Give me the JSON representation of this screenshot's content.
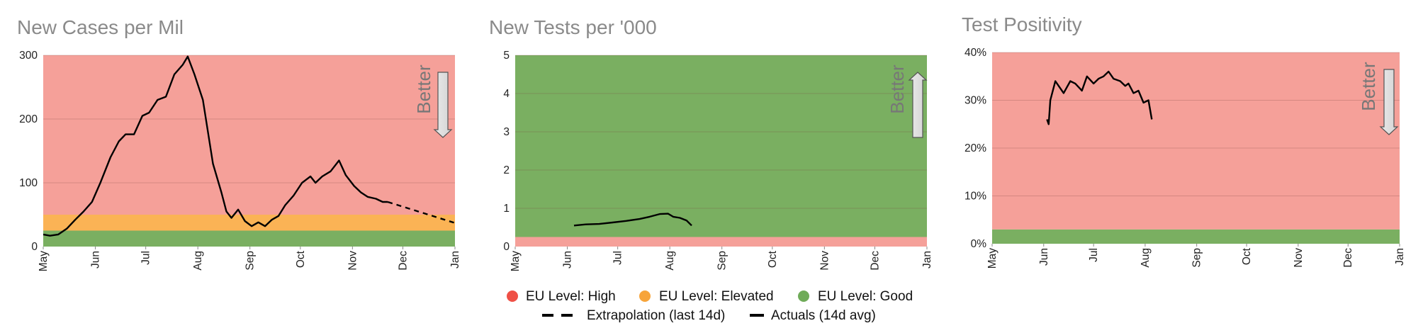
{
  "legend": {
    "high": "EU Level: High",
    "elevated": "EU Level: Elevated",
    "good": "EU Level: Good",
    "extrapolation": "Extrapolation (last 14d)",
    "actuals": "Actuals (14d avg)"
  },
  "colors": {
    "high": "#f5a099",
    "elevated": "#fbb355",
    "good": "#7aaf61",
    "legend_high": "#ef5046",
    "legend_elevated": "#f7a43a",
    "legend_good": "#6fab58",
    "line": "#000000"
  },
  "better_label": "Better",
  "chart_data": [
    {
      "type": "line",
      "title": "New Cases per Mil",
      "x_ticks": [
        "May",
        "Jun",
        "Jul",
        "Aug",
        "Sep",
        "Oct",
        "Nov",
        "Dec",
        "Jan"
      ],
      "y_ticks": [
        "0",
        "100",
        "200",
        "300"
      ],
      "ylim": [
        0,
        300
      ],
      "bands": [
        {
          "level": "good",
          "from": 0,
          "to": 25
        },
        {
          "level": "elevated",
          "from": 25,
          "to": 50
        },
        {
          "level": "high",
          "from": 50,
          "to": 300
        }
      ],
      "better_direction": "down",
      "series": [
        {
          "kind": "actuals",
          "points": [
            [
              "2020-05-01",
              19
            ],
            [
              "2020-05-05",
              17
            ],
            [
              "2020-05-10",
              19
            ],
            [
              "2020-05-15",
              28
            ],
            [
              "2020-05-20",
              42
            ],
            [
              "2020-05-25",
              55
            ],
            [
              "2020-05-30",
              70
            ],
            [
              "2020-06-04",
              100
            ],
            [
              "2020-06-10",
              140
            ],
            [
              "2020-06-15",
              165
            ],
            [
              "2020-06-19",
              176
            ],
            [
              "2020-06-24",
              176
            ],
            [
              "2020-06-29",
              205
            ],
            [
              "2020-07-03",
              210
            ],
            [
              "2020-07-08",
              230
            ],
            [
              "2020-07-13",
              235
            ],
            [
              "2020-07-18",
              270
            ],
            [
              "2020-07-23",
              285
            ],
            [
              "2020-07-26",
              298
            ],
            [
              "2020-07-30",
              270
            ],
            [
              "2020-08-04",
              230
            ],
            [
              "2020-08-10",
              130
            ],
            [
              "2020-08-15",
              85
            ],
            [
              "2020-08-18",
              55
            ],
            [
              "2020-08-21",
              45
            ],
            [
              "2020-08-25",
              58
            ],
            [
              "2020-08-29",
              40
            ],
            [
              "2020-09-02",
              32
            ],
            [
              "2020-09-06",
              38
            ],
            [
              "2020-09-10",
              32
            ],
            [
              "2020-09-14",
              42
            ],
            [
              "2020-09-18",
              48
            ],
            [
              "2020-09-22",
              65
            ],
            [
              "2020-09-27",
              80
            ],
            [
              "2020-10-02",
              100
            ],
            [
              "2020-10-07",
              110
            ],
            [
              "2020-10-10",
              100
            ],
            [
              "2020-10-14",
              110
            ],
            [
              "2020-10-19",
              118
            ],
            [
              "2020-10-24",
              135
            ],
            [
              "2020-10-28",
              112
            ],
            [
              "2020-11-02",
              95
            ],
            [
              "2020-11-06",
              85
            ],
            [
              "2020-11-10",
              78
            ],
            [
              "2020-11-15",
              75
            ],
            [
              "2020-11-19",
              70
            ],
            [
              "2020-11-22",
              70
            ]
          ]
        },
        {
          "kind": "extrapolation",
          "points": [
            [
              "2020-11-22",
              70
            ],
            [
              "2021-01-01",
              37
            ]
          ]
        }
      ]
    },
    {
      "type": "line",
      "title": "New Tests per '000",
      "x_ticks": [
        "May",
        "Jun",
        "Jul",
        "Aug",
        "Sep",
        "Oct",
        "Nov",
        "Dec",
        "Jan"
      ],
      "y_ticks": [
        "0",
        "1",
        "2",
        "3",
        "4",
        "5"
      ],
      "ylim": [
        0,
        5
      ],
      "bands": [
        {
          "level": "high",
          "from": 0,
          "to": 0.25
        },
        {
          "level": "good",
          "from": 0.25,
          "to": 5
        }
      ],
      "better_direction": "up",
      "series": [
        {
          "kind": "actuals",
          "points": [
            [
              "2020-06-05",
              0.55
            ],
            [
              "2020-06-12",
              0.58
            ],
            [
              "2020-06-20",
              0.59
            ],
            [
              "2020-06-28",
              0.63
            ],
            [
              "2020-07-06",
              0.67
            ],
            [
              "2020-07-14",
              0.72
            ],
            [
              "2020-07-20",
              0.78
            ],
            [
              "2020-07-26",
              0.85
            ],
            [
              "2020-07-31",
              0.86
            ],
            [
              "2020-08-03",
              0.78
            ],
            [
              "2020-08-07",
              0.75
            ],
            [
              "2020-08-11",
              0.68
            ],
            [
              "2020-08-14",
              0.55
            ]
          ]
        }
      ]
    },
    {
      "type": "line",
      "title": "Test Positivity",
      "x_ticks": [
        "May",
        "Jun",
        "Jul",
        "Aug",
        "Sep",
        "Oct",
        "Nov",
        "Dec",
        "Jan"
      ],
      "y_ticks": [
        "0%",
        "10%",
        "20%",
        "30%",
        "40%"
      ],
      "ylim": [
        0,
        40
      ],
      "bands": [
        {
          "level": "good",
          "from": 0,
          "to": 3
        },
        {
          "level": "high",
          "from": 3,
          "to": 40
        }
      ],
      "better_direction": "down",
      "series": [
        {
          "kind": "actuals",
          "points": [
            [
              "2020-06-03",
              26
            ],
            [
              "2020-06-04",
              25
            ],
            [
              "2020-06-05",
              30
            ],
            [
              "2020-06-08",
              34
            ],
            [
              "2020-06-10",
              33
            ],
            [
              "2020-06-13",
              31.5
            ],
            [
              "2020-06-17",
              34
            ],
            [
              "2020-06-20",
              33.5
            ],
            [
              "2020-06-24",
              32
            ],
            [
              "2020-06-27",
              35
            ],
            [
              "2020-07-01",
              33.5
            ],
            [
              "2020-07-04",
              34.5
            ],
            [
              "2020-07-07",
              35
            ],
            [
              "2020-07-10",
              36
            ],
            [
              "2020-07-13",
              34.5
            ],
            [
              "2020-07-17",
              34
            ],
            [
              "2020-07-20",
              33
            ],
            [
              "2020-07-22",
              33.5
            ],
            [
              "2020-07-25",
              31.5
            ],
            [
              "2020-07-28",
              32
            ],
            [
              "2020-07-31",
              29.5
            ],
            [
              "2020-08-03",
              30
            ],
            [
              "2020-08-05",
              26
            ]
          ]
        }
      ]
    }
  ]
}
